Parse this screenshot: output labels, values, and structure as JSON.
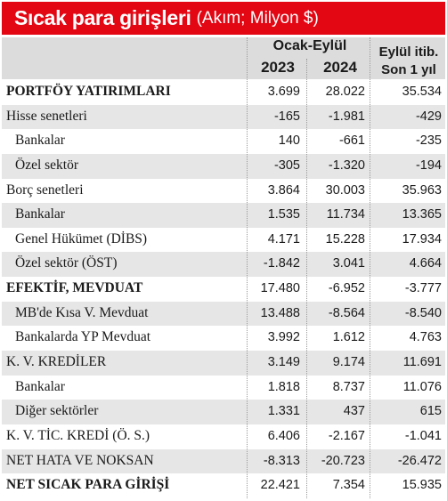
{
  "title": {
    "main": "Sıcak para girişleri",
    "sub": "(Akım; Milyon $)"
  },
  "header": {
    "period": "Ocak-Eylül",
    "year1": "2023",
    "year2": "2024",
    "col3_line1": "Eylül itib.",
    "col3_line2": "Son 1 yıl"
  },
  "rows": [
    {
      "label": "PORTFÖY YATIRIMLARI",
      "v1": "3.699",
      "v2": "28.022",
      "v3": "35.534"
    },
    {
      "label": "Hisse senetleri",
      "v1": "-165",
      "v2": "-1.981",
      "v3": "-429"
    },
    {
      "label": "Bankalar",
      "v1": "140",
      "v2": "-661",
      "v3": "-235"
    },
    {
      "label": "Özel sektör",
      "v1": "-305",
      "v2": "-1.320",
      "v3": "-194"
    },
    {
      "label": "Borç senetleri",
      "v1": "3.864",
      "v2": "30.003",
      "v3": "35.963"
    },
    {
      "label": "Bankalar",
      "v1": "1.535",
      "v2": "11.734",
      "v3": "13.365"
    },
    {
      "label": "Genel Hükümet (DİBS)",
      "v1": "4.171",
      "v2": "15.228",
      "v3": "17.934"
    },
    {
      "label": "Özel sektör (ÖST)",
      "v1": "-1.842",
      "v2": "3.041",
      "v3": "4.664"
    },
    {
      "label": "EFEKTİF, MEVDUAT",
      "v1": "17.480",
      "v2": "-6.952",
      "v3": "-3.777"
    },
    {
      "label": "MB'de Kısa V. Mevduat",
      "v1": "13.488",
      "v2": "-8.564",
      "v3": "-8.540"
    },
    {
      "label": "Bankalarda YP Mevduat",
      "v1": "3.992",
      "v2": "1.612",
      "v3": "4.763"
    },
    {
      "label": "K. V. KREDİLER",
      "v1": "3.149",
      "v2": "9.174",
      "v3": "11.691"
    },
    {
      "label": "Bankalar",
      "v1": "1.818",
      "v2": "8.737",
      "v3": "11.076"
    },
    {
      "label": "Diğer sektörler",
      "v1": "1.331",
      "v2": "437",
      "v3": "615"
    },
    {
      "label": "K. V. TİC. KREDİ (Ö. S.)",
      "v1": "6.406",
      "v2": "-2.167",
      "v3": "-1.041"
    },
    {
      "label": "NET HATA VE NOKSAN",
      "v1": "-8.313",
      "v2": "-20.723",
      "v3": "-26.472"
    },
    {
      "label": "NET SICAK PARA GİRİŞİ",
      "v1": "22.421",
      "v2": "7.354",
      "v3": "15.935"
    }
  ],
  "colors": {
    "title_background": "#e30613",
    "header_background": "#dcdcdc",
    "alt_row_background": "#e6e6e6"
  }
}
